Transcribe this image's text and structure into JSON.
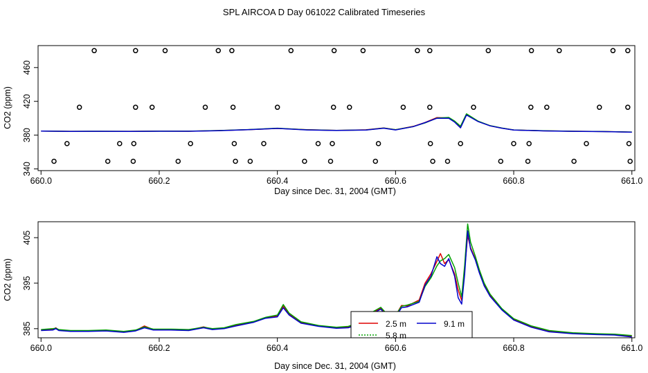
{
  "title": "SPL AIRCOA D  Day 061022  Calibrated Timeseries",
  "colors": {
    "s1": "#dd0000",
    "s2": "#00a000",
    "s3": "#0000cc"
  },
  "chart_data": [
    {
      "type": "line",
      "xlabel": "Day since Dec. 31, 2004 (GMT)",
      "ylabel": "CO2 (ppm)",
      "xlim": [
        659.995,
        661.005
      ],
      "ylim": [
        338,
        486
      ],
      "xticks": [
        "660.0",
        "660.2",
        "660.4",
        "660.6",
        "660.8",
        "661.0"
      ],
      "yticks": [
        "340",
        "380",
        "420",
        "460"
      ],
      "ytick_values": [
        340,
        380,
        420,
        460
      ],
      "grid": false,
      "series": [
        {
          "color": "#dd0000",
          "x": [
            660.0,
            660.05,
            660.1,
            660.15,
            660.2,
            660.25,
            660.3,
            660.35,
            660.4,
            660.45,
            660.5,
            660.55,
            660.58,
            660.6,
            660.63,
            660.65,
            660.67,
            660.69,
            660.7,
            660.71,
            660.72,
            660.74,
            660.76,
            660.78,
            660.8,
            660.85,
            660.9,
            660.95,
            661.0
          ],
          "y": [
            384.8,
            384.5,
            384.5,
            384.5,
            384.8,
            384.6,
            385.4,
            386.5,
            388.0,
            386.4,
            385.6,
            386.3,
            388.5,
            386.4,
            390.4,
            395.0,
            400.8,
            400.4,
            395.8,
            389.2,
            404.2,
            396.2,
            391.1,
            388.3,
            386.2,
            385.1,
            384.6,
            384.3,
            383.6
          ]
        },
        {
          "color": "#00a000",
          "x": [
            660.0,
            660.05,
            660.1,
            660.15,
            660.2,
            660.25,
            660.3,
            660.35,
            660.4,
            660.45,
            660.5,
            660.55,
            660.58,
            660.6,
            660.63,
            660.65,
            660.67,
            660.69,
            660.7,
            660.71,
            660.72,
            660.74,
            660.76,
            660.78,
            660.8,
            660.85,
            660.9,
            660.95,
            661.0
          ],
          "y": [
            384.8,
            384.5,
            384.6,
            384.5,
            384.7,
            384.7,
            385.4,
            386.6,
            388.2,
            386.3,
            385.6,
            386.2,
            388.4,
            386.5,
            390.2,
            394.5,
            400.2,
            401.0,
            396.6,
            390.6,
            405.2,
            396.5,
            391.2,
            388.4,
            386.2,
            385.2,
            384.6,
            384.3,
            383.7
          ]
        },
        {
          "color": "#0000cc",
          "x": [
            660.0,
            660.05,
            660.1,
            660.15,
            660.2,
            660.25,
            660.3,
            660.35,
            660.4,
            660.45,
            660.5,
            660.55,
            660.58,
            660.6,
            660.63,
            660.65,
            660.67,
            660.69,
            660.7,
            660.71,
            660.72,
            660.74,
            660.76,
            660.78,
            660.8,
            660.85,
            660.9,
            660.95,
            661.0
          ],
          "y": [
            384.8,
            384.4,
            384.5,
            384.4,
            384.6,
            384.6,
            385.3,
            386.5,
            388.0,
            386.2,
            385.5,
            386.1,
            388.2,
            386.2,
            390.1,
            394.8,
            400.0,
            400.0,
            395.4,
            388.6,
            403.8,
            396.0,
            391.0,
            388.2,
            386.1,
            385.0,
            384.5,
            384.2,
            383.5
          ]
        }
      ],
      "markers": {
        "symbol": "open-circle",
        "x": [
          660.09,
          660.16,
          660.21,
          660.3,
          660.323,
          660.423,
          660.496,
          660.545,
          660.637,
          660.658,
          660.757,
          660.83,
          660.877,
          660.968,
          660.993,
          660.065,
          660.16,
          660.188,
          660.278,
          660.325,
          660.4,
          660.495,
          660.522,
          660.613,
          660.658,
          660.732,
          660.829,
          660.856,
          660.945,
          660.993,
          660.044,
          660.133,
          660.157,
          660.253,
          660.327,
          660.377,
          660.469,
          660.493,
          660.571,
          660.659,
          660.71,
          660.8,
          660.826,
          660.923,
          660.995,
          660.022,
          660.113,
          660.156,
          660.232,
          660.329,
          660.354,
          660.446,
          660.49,
          660.566,
          660.663,
          660.688,
          660.778,
          660.824,
          660.902,
          660.997
        ],
        "y": [
          480,
          480,
          480,
          480,
          480,
          480,
          480,
          480,
          480,
          480,
          480,
          480,
          480,
          480,
          480,
          413,
          413,
          413,
          413,
          413,
          413,
          413,
          413,
          413,
          413,
          413,
          413,
          413,
          413,
          413,
          370,
          370,
          370,
          370,
          370,
          370,
          370,
          370,
          370,
          370,
          370,
          370,
          370,
          370,
          370,
          349,
          349,
          349,
          349,
          349,
          349,
          349,
          349,
          349,
          349,
          349,
          349,
          349,
          349,
          349
        ]
      }
    },
    {
      "type": "line",
      "xlabel": "Day since Dec. 31, 2004 (GMT)",
      "ylabel": "CO2 (ppm)",
      "xlim": [
        659.995,
        661.005
      ],
      "ylim": [
        383.0,
        408.5
      ],
      "xticks": [
        "660.0",
        "660.2",
        "660.4",
        "660.6",
        "660.8",
        "661.0"
      ],
      "yticks": [
        "385",
        "395",
        "405"
      ],
      "ytick_values": [
        385,
        395,
        405
      ],
      "grid": false,
      "legend": {
        "placement": "bottom-center",
        "labels": [
          "2.5 m",
          "5.8 m",
          "9.1 m"
        ]
      },
      "series": [
        {
          "name": "2.5 m",
          "color": "#dd0000",
          "x": [
            660.0,
            660.02,
            660.025,
            660.03,
            660.05,
            660.08,
            660.11,
            660.14,
            660.16,
            660.175,
            660.19,
            660.22,
            660.25,
            660.275,
            660.29,
            660.31,
            660.33,
            660.36,
            660.38,
            660.4,
            660.41,
            660.42,
            660.44,
            660.47,
            660.5,
            660.52,
            660.54,
            660.56,
            660.575,
            660.585,
            660.595,
            660.61,
            660.62,
            660.64,
            660.65,
            660.66,
            660.67,
            660.676,
            660.683,
            660.69,
            660.7,
            660.706,
            660.712,
            660.717,
            660.722,
            660.727,
            660.735,
            660.742,
            660.75,
            660.76,
            660.78,
            660.8,
            660.83,
            660.86,
            660.9,
            660.94,
            660.97,
            661.0
          ],
          "y": [
            384.7,
            384.8,
            385.2,
            384.7,
            384.5,
            384.5,
            384.6,
            384.3,
            384.6,
            385.6,
            384.8,
            384.8,
            384.7,
            385.4,
            384.9,
            385.1,
            385.8,
            386.5,
            387.4,
            387.8,
            390.0,
            388.2,
            386.4,
            385.6,
            385.2,
            385.4,
            386.3,
            388.4,
            389.5,
            388.0,
            386.7,
            390.1,
            390.0,
            391.3,
            395.0,
            397.1,
            399.8,
            401.5,
            399.3,
            400.2,
            397.0,
            393.5,
            391.2,
            398.0,
            405.5,
            402.8,
            400.3,
            397.4,
            394.6,
            392.3,
            389.2,
            387.0,
            385.4,
            384.4,
            384.0,
            383.8,
            383.7,
            383.4
          ]
        },
        {
          "name": "5.8 m",
          "color": "#00a000",
          "x": [
            660.0,
            660.02,
            660.025,
            660.03,
            660.05,
            660.08,
            660.11,
            660.14,
            660.16,
            660.175,
            660.19,
            660.22,
            660.25,
            660.275,
            660.29,
            660.31,
            660.33,
            660.36,
            660.38,
            660.4,
            660.41,
            660.42,
            660.44,
            660.47,
            660.5,
            660.52,
            660.54,
            660.56,
            660.575,
            660.585,
            660.595,
            660.61,
            660.62,
            660.64,
            660.65,
            660.66,
            660.67,
            660.676,
            660.683,
            660.69,
            660.7,
            660.706,
            660.712,
            660.717,
            660.722,
            660.727,
            660.735,
            660.742,
            660.75,
            660.76,
            660.78,
            660.8,
            660.83,
            660.86,
            660.9,
            660.94,
            660.97,
            661.0
          ],
          "y": [
            384.8,
            385.0,
            385.1,
            384.8,
            384.6,
            384.6,
            384.7,
            384.4,
            384.7,
            385.4,
            384.9,
            384.9,
            384.8,
            385.3,
            385.0,
            385.2,
            385.9,
            386.6,
            387.5,
            388.0,
            390.3,
            388.4,
            386.5,
            385.7,
            385.3,
            385.5,
            386.4,
            388.6,
            389.7,
            388.3,
            386.9,
            389.9,
            390.2,
            391.0,
            394.3,
            396.2,
            398.8,
            399.9,
            400.4,
            401.3,
            398.4,
            395.0,
            392.0,
            399.0,
            408.0,
            404.0,
            400.9,
            397.9,
            395.0,
            392.6,
            389.4,
            387.2,
            385.6,
            384.6,
            384.1,
            383.9,
            383.8,
            383.5
          ]
        },
        {
          "name": "9.1 m",
          "color": "#0000cc",
          "x": [
            660.0,
            660.02,
            660.025,
            660.03,
            660.05,
            660.08,
            660.11,
            660.14,
            660.16,
            660.175,
            660.19,
            660.22,
            660.25,
            660.275,
            660.29,
            660.31,
            660.33,
            660.36,
            660.38,
            660.4,
            660.41,
            660.42,
            660.44,
            660.47,
            660.5,
            660.52,
            660.54,
            660.56,
            660.575,
            660.585,
            660.595,
            660.61,
            660.62,
            660.64,
            660.65,
            660.66,
            660.67,
            660.676,
            660.683,
            660.69,
            660.7,
            660.706,
            660.712,
            660.717,
            660.722,
            660.727,
            660.735,
            660.742,
            660.75,
            660.76,
            660.78,
            660.8,
            660.83,
            660.86,
            660.9,
            660.94,
            660.97,
            661.0
          ],
          "y": [
            384.6,
            384.7,
            385.0,
            384.6,
            384.4,
            384.4,
            384.5,
            384.2,
            384.5,
            385.2,
            384.7,
            384.7,
            384.6,
            385.2,
            384.8,
            385.0,
            385.6,
            386.4,
            387.3,
            387.6,
            389.6,
            388.0,
            386.2,
            385.5,
            385.1,
            385.2,
            386.1,
            388.2,
            389.3,
            387.8,
            386.5,
            389.6,
            389.8,
            390.8,
            394.6,
            396.6,
            400.8,
            399.3,
            398.7,
            400.4,
            396.5,
            391.8,
            390.4,
            397.0,
            406.5,
            402.5,
            400.1,
            397.2,
            394.4,
            392.1,
            389.1,
            386.9,
            385.3,
            384.3,
            383.9,
            383.7,
            383.6,
            383.2
          ]
        }
      ]
    }
  ]
}
